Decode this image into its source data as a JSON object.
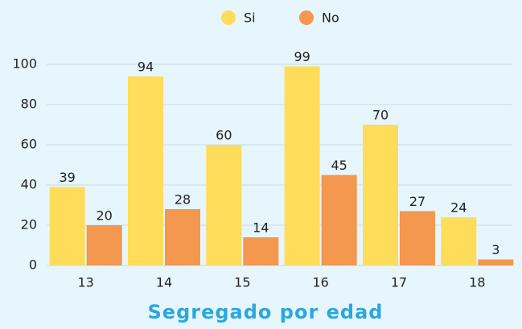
{
  "chart_data": {
    "type": "bar",
    "title": "Segregado por edad",
    "categories": [
      "13",
      "14",
      "15",
      "16",
      "17",
      "18"
    ],
    "series": [
      {
        "name": "Si",
        "color": "#ffdc5a",
        "values": [
          39,
          94,
          60,
          99,
          70,
          24
        ]
      },
      {
        "name": "No",
        "color": "#f4974f",
        "values": [
          20,
          28,
          14,
          45,
          27,
          3
        ]
      }
    ],
    "ylim": [
      0,
      100
    ],
    "yticks": [
      0,
      20,
      40,
      60,
      80,
      100
    ],
    "grid": true,
    "legend": "top"
  }
}
